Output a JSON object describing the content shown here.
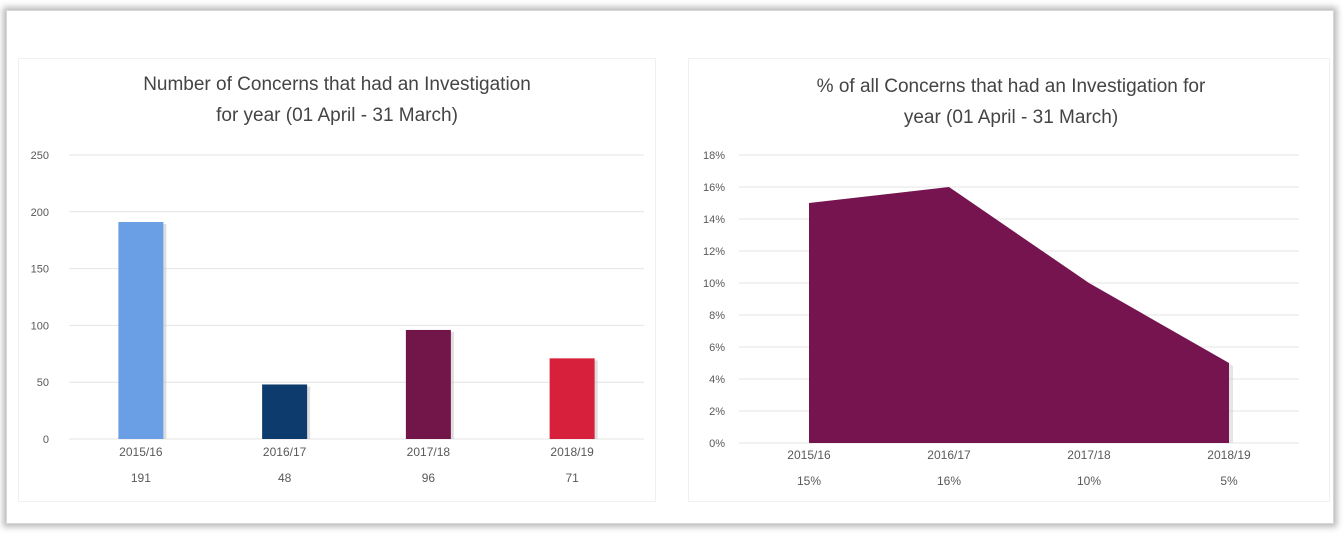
{
  "chart_data": [
    {
      "type": "bar",
      "title_lines": [
        "Number of Concerns that had an Investigation",
        "for year (01 April - 31 March)"
      ],
      "categories": [
        "2015/16",
        "2016/17",
        "2017/18",
        "2018/19"
      ],
      "values": [
        191,
        48,
        96,
        71
      ],
      "value_labels": [
        "191",
        "48",
        "96",
        "71"
      ],
      "colors": [
        "#6a9fe6",
        "#0e3b6e",
        "#721549",
        "#d7213c"
      ],
      "ylim": [
        0,
        250
      ],
      "yticks": [
        "0",
        "50",
        "100",
        "150",
        "200",
        "250"
      ],
      "grid": true
    },
    {
      "type": "area",
      "title_lines": [
        "% of all Concerns that had an Investigation for",
        "year (01 April - 31 March)"
      ],
      "categories": [
        "2015/16",
        "2016/17",
        "2017/18",
        "2018/19"
      ],
      "values": [
        15,
        16,
        10,
        5
      ],
      "value_labels": [
        "15%",
        "16%",
        "10%",
        "5%"
      ],
      "color": "#761450",
      "ylim": [
        0,
        18
      ],
      "yticks": [
        "0%",
        "2%",
        "4%",
        "6%",
        "8%",
        "10%",
        "12%",
        "14%",
        "16%",
        "18%"
      ],
      "grid": true
    }
  ]
}
